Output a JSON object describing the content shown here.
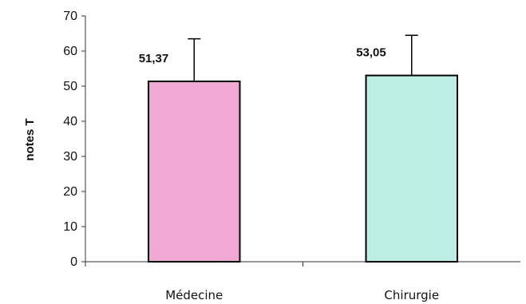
{
  "chart_data": {
    "type": "bar",
    "categories": [
      "Médecine",
      "Chirurgie"
    ],
    "values": [
      51.37,
      53.05
    ],
    "value_labels": [
      "51,37",
      "53,05"
    ],
    "error_upper": [
      63.5,
      64.5
    ],
    "ylabel": "notes T",
    "ylim": [
      0,
      70
    ],
    "yticks": [
      0,
      10,
      20,
      30,
      40,
      50,
      60,
      70
    ],
    "grid": false,
    "colors": [
      "#f1a9d3",
      "#bdeee5"
    ],
    "bar_stroke": "#000000"
  }
}
